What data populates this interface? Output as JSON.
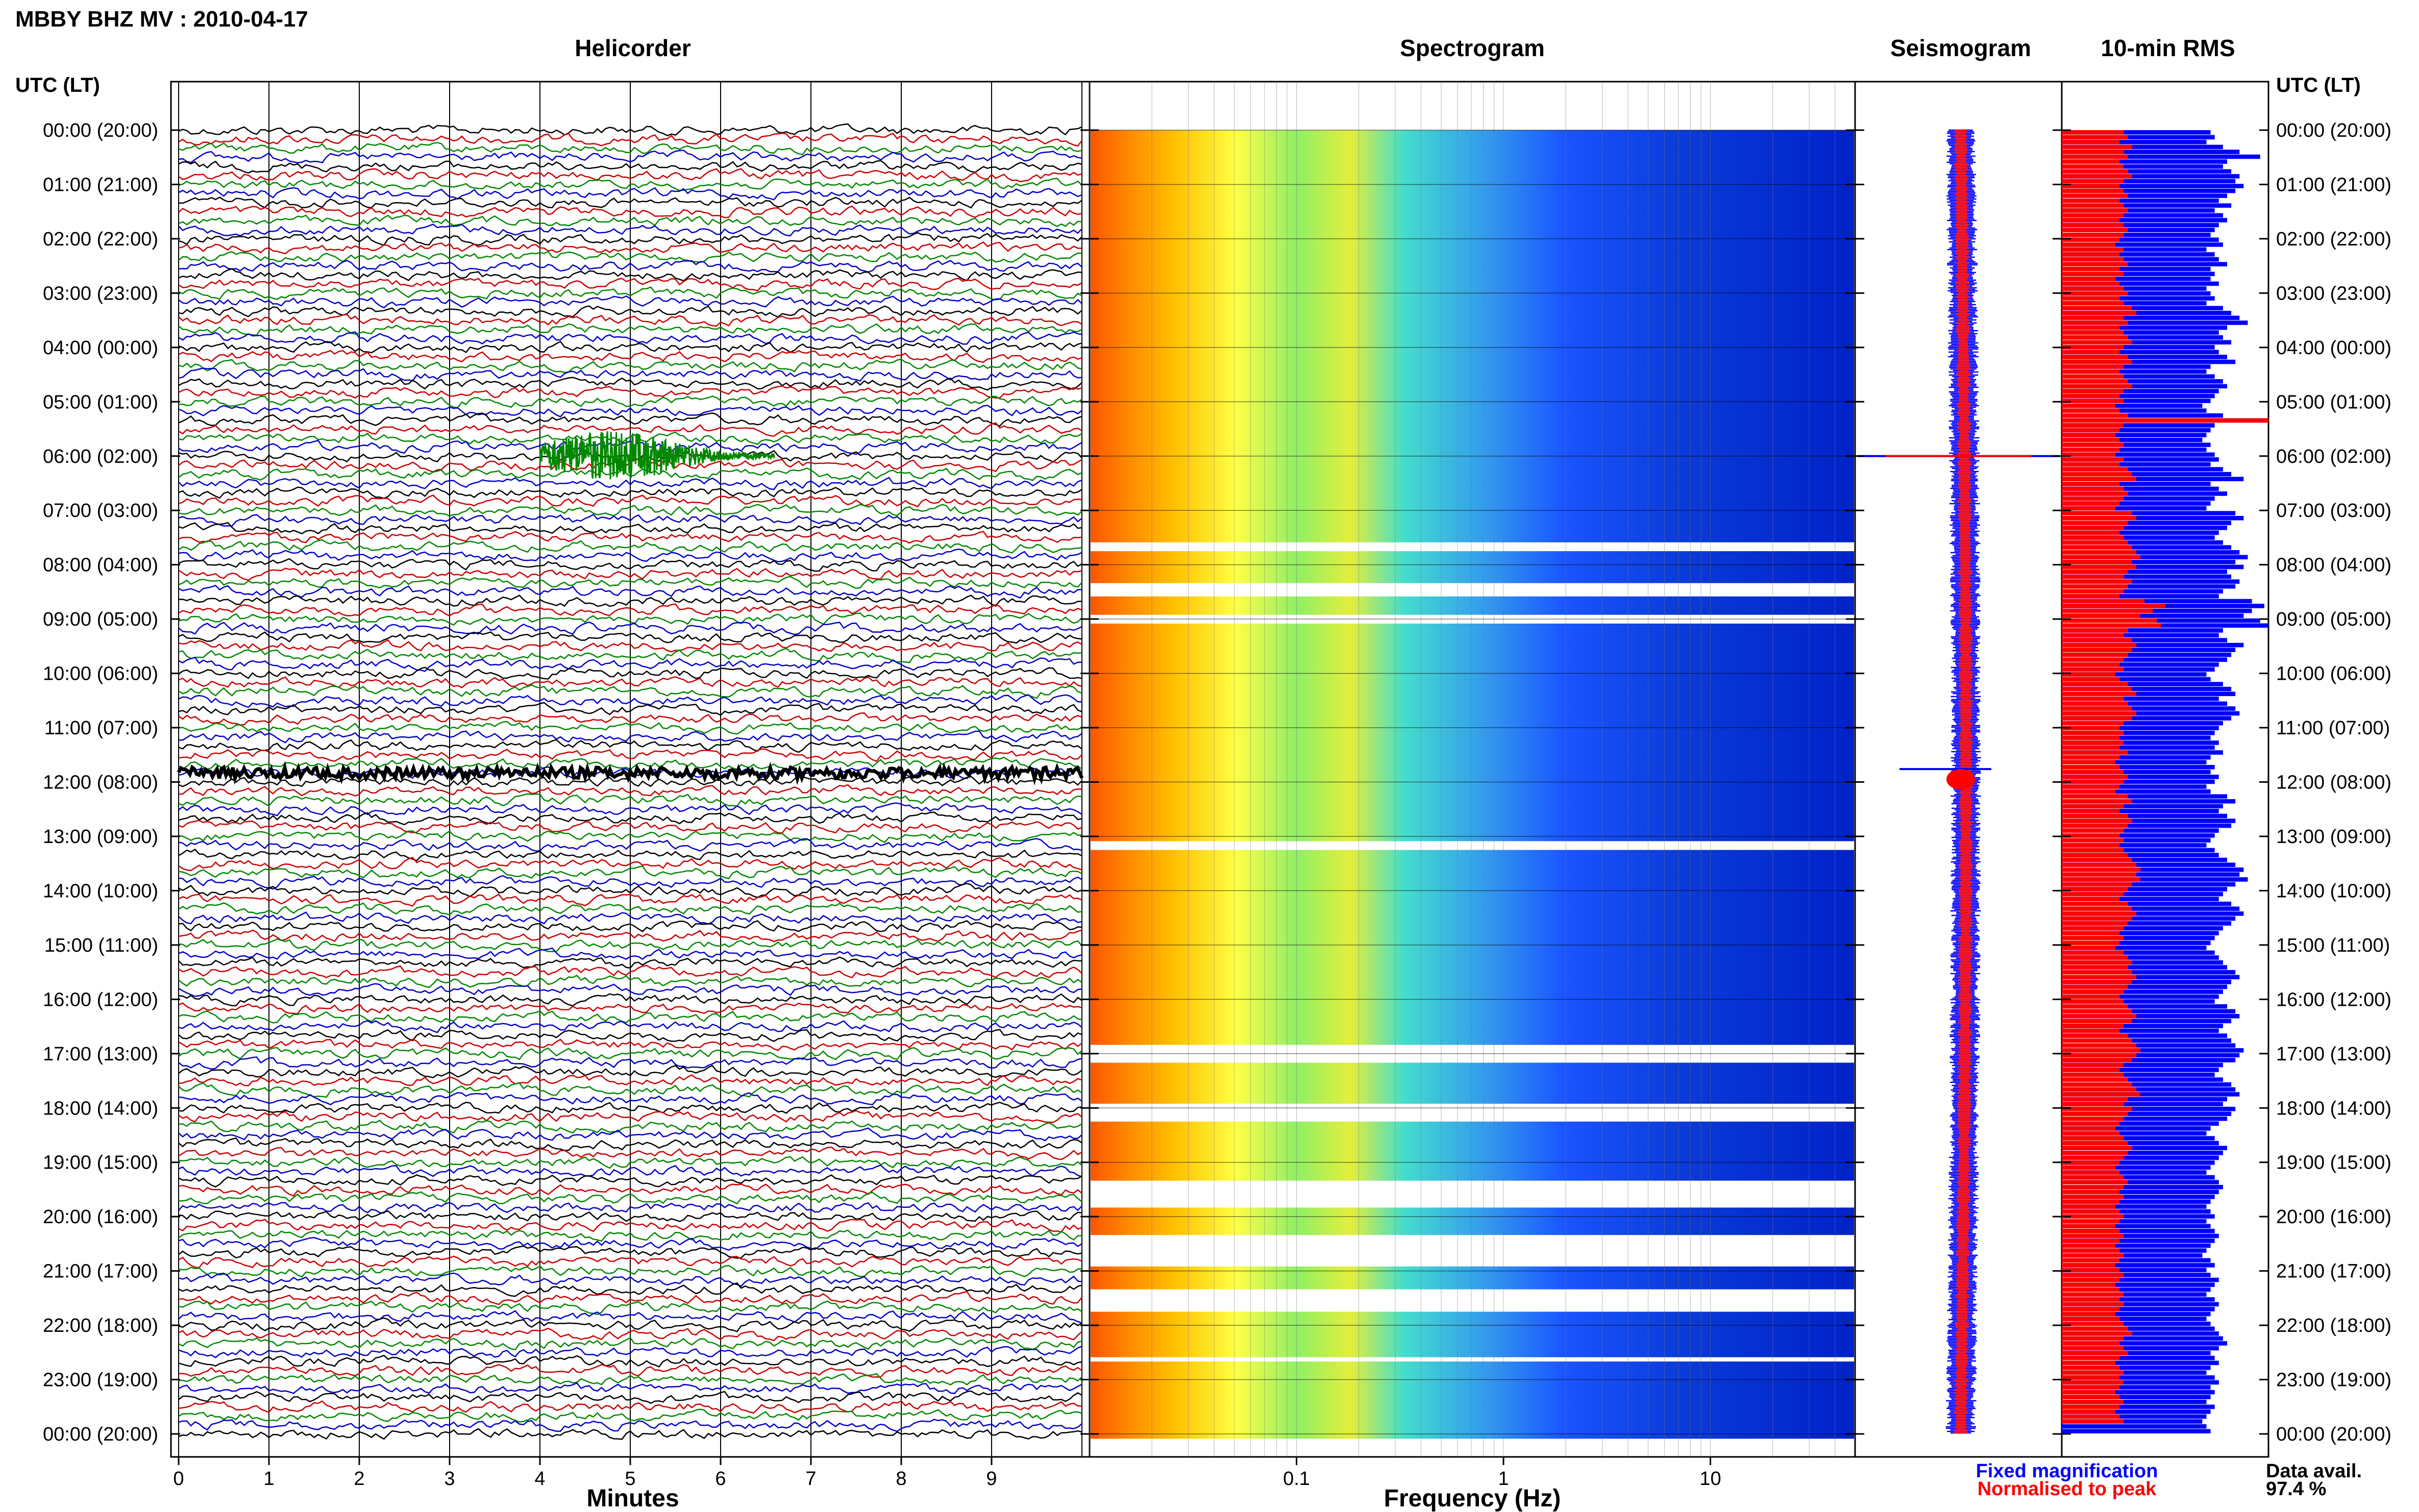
{
  "figure": {
    "title": "MBBY BHZ MV : 2010-04-17",
    "left_axis_header": "UTC (LT)",
    "right_axis_header": "UTC (LT)",
    "time_labels": [
      "00:00 (20:00)",
      "01:00 (21:00)",
      "02:00 (22:00)",
      "03:00 (23:00)",
      "04:00 (00:00)",
      "05:00 (01:00)",
      "06:00 (02:00)",
      "07:00 (03:00)",
      "08:00 (04:00)",
      "09:00 (05:00)",
      "10:00 (06:00)",
      "11:00 (07:00)",
      "12:00 (08:00)",
      "13:00 (09:00)",
      "14:00 (10:00)",
      "15:00 (11:00)",
      "16:00 (12:00)",
      "17:00 (13:00)",
      "18:00 (14:00)",
      "19:00 (15:00)",
      "20:00 (16:00)",
      "21:00 (17:00)",
      "22:00 (18:00)",
      "23:00 (19:00)",
      "00:00 (20:00)"
    ],
    "legend": {
      "fixed_label": "Fixed magnification",
      "fixed_color": "#0000ff",
      "normalised_label": "Normalised to peak",
      "normalised_color": "#ff0000"
    },
    "data_availability": {
      "label": "Data avail.",
      "value": "97.4 %"
    }
  },
  "chart_data": [
    {
      "panel": "helicorder",
      "type": "line",
      "title": "Helicorder",
      "xlabel": "Minutes",
      "xlim": [
        0,
        10
      ],
      "x_ticks": [
        "0",
        "1",
        "2",
        "3",
        "4",
        "5",
        "6",
        "7",
        "8",
        "9"
      ],
      "trace_colors": [
        "#000000",
        "#cc0000",
        "#008800",
        "#0000cc"
      ],
      "rows_per_hour": 6,
      "events": [
        {
          "label": "green burst",
          "row_time": "06:00",
          "start_min": 4.0,
          "end_min": 6.6,
          "color": "#008800"
        },
        {
          "label": "large signal",
          "row_time": "11:50",
          "start_min": 0.0,
          "end_min": 10.0,
          "color": "#000000"
        }
      ]
    },
    {
      "panel": "spectrogram",
      "type": "heatmap",
      "title": "Spectrogram",
      "xlabel": "Frequency (Hz)",
      "x_scale": "log",
      "xlim": [
        0.01,
        50
      ],
      "x_ticks": [
        "0.1",
        "1",
        "10"
      ],
      "colormap": [
        "#ff4400",
        "#ffaa00",
        "#ffff33",
        "#33ddcc",
        "#2277ff",
        "#0022cc"
      ]
    },
    {
      "panel": "seismogram",
      "type": "line",
      "title": "Seismogram",
      "series": [
        {
          "name": "Fixed magnification",
          "color": "#0000ff"
        },
        {
          "name": "Normalised to peak",
          "color": "#ff0000"
        }
      ]
    },
    {
      "panel": "rms",
      "type": "bar",
      "title": "10-min RMS",
      "orientation": "horizontal",
      "series": [
        {
          "name": "Fixed magnification",
          "color": "#0000ff",
          "values": [
            72,
            74,
            70,
            78,
            86,
            96,
            80,
            78,
            82,
            86,
            84,
            88,
            84,
            80,
            76,
            82,
            74,
            78,
            80,
            76,
            74,
            72,
            76,
            78,
            70,
            74,
            76,
            80,
            72,
            74,
            72,
            76,
            70,
            72,
            74,
            70,
            78,
            82,
            86,
            90,
            80,
            76,
            78,
            82,
            74,
            76,
            80,
            84,
            72,
            70,
            74,
            78,
            80,
            76,
            74,
            72,
            68,
            70,
            78,
            100,
            74,
            72,
            70,
            68,
            72,
            70,
            74,
            76,
            72,
            78,
            82,
            88,
            72,
            76,
            80,
            74,
            72,
            70,
            84,
            88,
            82,
            80,
            76,
            74,
            78,
            82,
            86,
            90,
            84,
            88,
            80,
            82,
            86,
            84,
            78,
            76,
            92,
            98,
            92,
            88,
            96,
            100,
            78,
            76,
            80,
            88,
            84,
            82,
            80,
            76,
            74,
            70,
            72,
            78,
            82,
            84,
            76,
            80,
            84,
            86,
            82,
            78,
            76,
            74,
            72,
            76,
            74,
            78,
            72,
            70,
            74,
            72,
            76,
            74,
            70,
            72,
            80,
            84,
            78,
            76,
            80,
            84,
            82,
            76,
            74,
            72,
            70,
            74,
            76,
            80,
            84,
            88,
            86,
            90,
            84,
            80,
            78,
            76,
            82,
            86,
            88,
            84,
            82,
            78,
            76,
            74,
            72,
            70,
            74,
            76,
            78,
            80,
            84,
            86,
            82,
            80,
            78,
            76,
            74,
            80,
            84,
            86,
            82,
            78,
            76,
            80,
            82,
            84,
            88,
            86,
            84,
            78,
            76,
            74,
            78,
            82,
            84,
            86,
            80,
            78,
            84,
            82,
            80,
            76,
            72,
            70,
            74,
            76,
            80,
            78,
            76,
            74,
            72,
            70,
            74,
            76,
            78,
            76,
            74,
            72,
            70,
            72,
            74,
            70,
            72,
            74,
            76,
            74,
            72,
            70,
            68,
            72,
            74,
            70,
            72,
            76,
            74,
            72,
            70,
            74,
            76,
            74,
            72,
            70,
            72,
            74,
            76,
            78,
            80,
            76,
            72,
            74,
            76,
            72,
            70,
            74,
            76,
            72,
            74,
            72,
            70,
            74,
            72,
            70,
            68,
            70,
            72
          ]
        },
        {
          "name": "Normalised to peak",
          "color": "#ff0000",
          "values": [
            30,
            32,
            28,
            34,
            30,
            32,
            28,
            30,
            32,
            34,
            30,
            28,
            30,
            32,
            28,
            30,
            32,
            30,
            28,
            30,
            32,
            30,
            28,
            26,
            30,
            28,
            30,
            32,
            28,
            30,
            26,
            28,
            30,
            32,
            28,
            30,
            34,
            36,
            30,
            32,
            28,
            30,
            32,
            34,
            30,
            28,
            32,
            34,
            30,
            28,
            30,
            32,
            34,
            30,
            28,
            30,
            26,
            28,
            32,
            100,
            30,
            28,
            26,
            28,
            30,
            28,
            26,
            30,
            28,
            32,
            34,
            36,
            28,
            30,
            32,
            30,
            28,
            26,
            34,
            36,
            32,
            30,
            28,
            30,
            32,
            34,
            36,
            38,
            34,
            36,
            32,
            30,
            34,
            32,
            30,
            28,
            40,
            50,
            44,
            38,
            46,
            48,
            32,
            30,
            34,
            36,
            34,
            32,
            30,
            28,
            30,
            26,
            28,
            32,
            34,
            36,
            30,
            32,
            34,
            36,
            34,
            30,
            28,
            30,
            28,
            30,
            28,
            32,
            28,
            26,
            28,
            30,
            32,
            30,
            28,
            26,
            32,
            34,
            30,
            28,
            32,
            34,
            32,
            30,
            28,
            30,
            28,
            30,
            32,
            34,
            36,
            38,
            36,
            38,
            34,
            32,
            30,
            28,
            32,
            34,
            36,
            34,
            32,
            30,
            28,
            30,
            28,
            26,
            30,
            32,
            34,
            32,
            34,
            36,
            34,
            32,
            30,
            28,
            30,
            32,
            34,
            36,
            34,
            30,
            28,
            32,
            34,
            36,
            38,
            36,
            34,
            30,
            28,
            30,
            32,
            34,
            36,
            38,
            32,
            30,
            34,
            32,
            30,
            28,
            26,
            28,
            30,
            32,
            34,
            32,
            30,
            28,
            26,
            28,
            30,
            32,
            30,
            28,
            30,
            28,
            26,
            28,
            30,
            28,
            26,
            28,
            30,
            28,
            26,
            28,
            30,
            28,
            26,
            28,
            30,
            28,
            26,
            28,
            30,
            28,
            30,
            28,
            26,
            28,
            30,
            32,
            34,
            30,
            28,
            30,
            32,
            28,
            26,
            28,
            30,
            28,
            30,
            28,
            26,
            28,
            30,
            28,
            26,
            28,
            30
          ]
        }
      ]
    }
  ]
}
